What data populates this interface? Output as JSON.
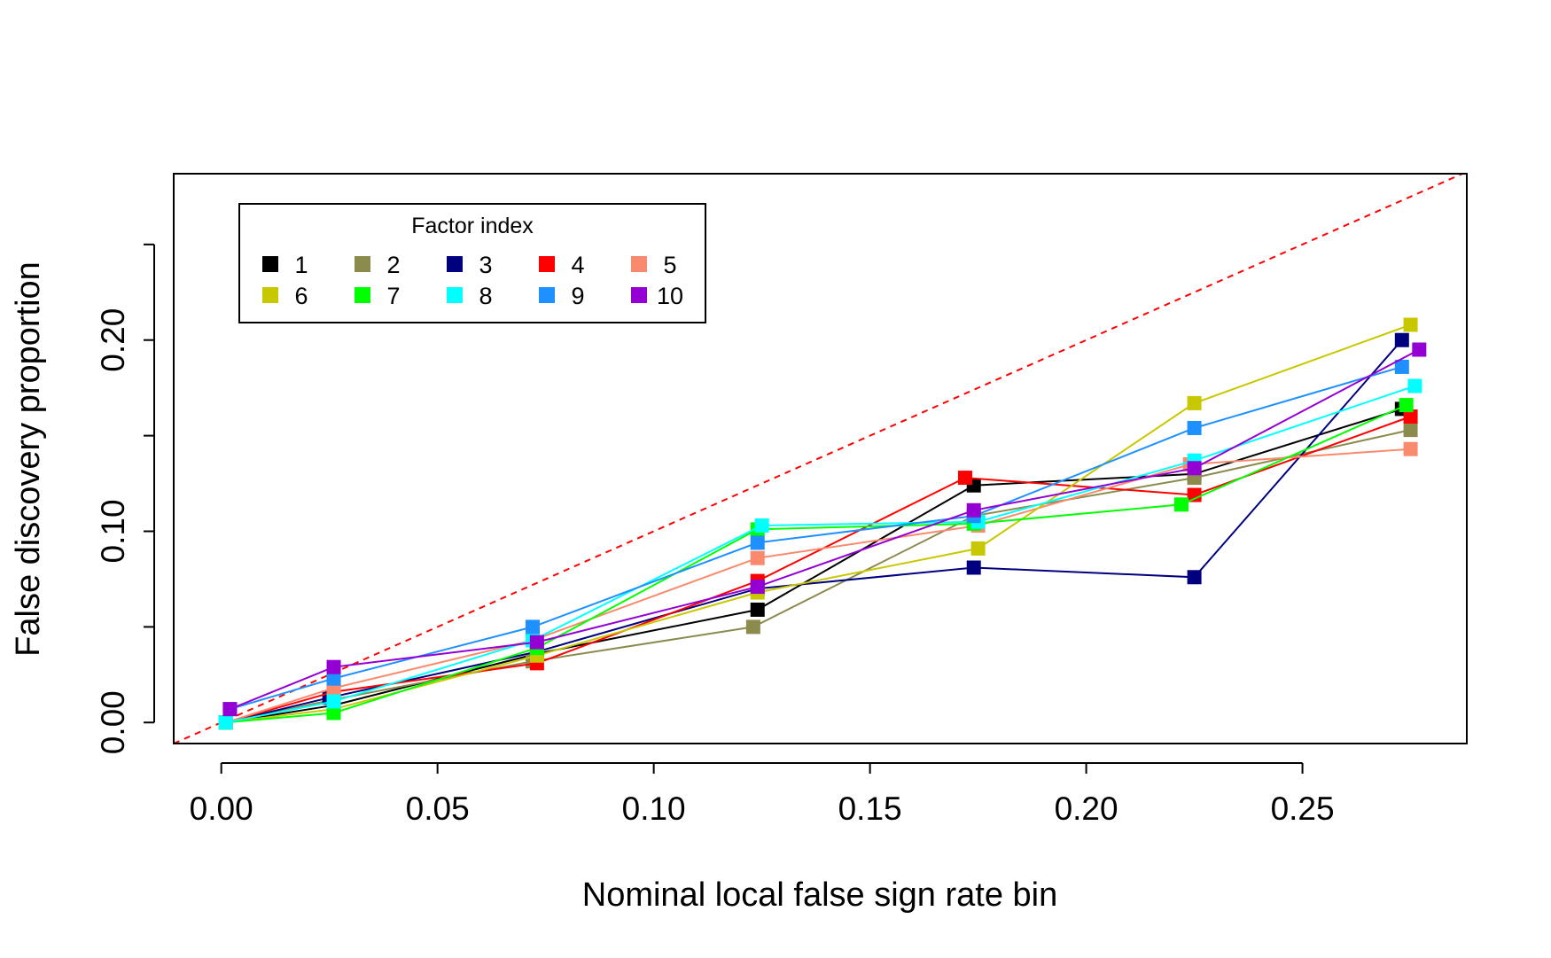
{
  "chart_data": {
    "type": "line",
    "xlabel": "Nominal local false sign rate bin",
    "ylabel": "False discovery proportion",
    "xlim": [
      -0.011,
      0.288
    ],
    "ylim": [
      -0.011,
      0.287
    ],
    "x_ticks": [
      0.0,
      0.05,
      0.1,
      0.15,
      0.2,
      0.25
    ],
    "x_tick_labels": [
      "0.00",
      "0.05",
      "0.10",
      "0.15",
      "0.20",
      "0.25"
    ],
    "y_ticks": [
      0.0,
      0.05,
      0.1,
      0.15,
      0.2,
      0.25
    ],
    "y_tick_labels": [
      "0.00",
      "",
      "0.10",
      "",
      "0.20",
      ""
    ],
    "reference_line": {
      "slope": 1,
      "intercept": 0,
      "style": "dashed",
      "color": "#ff0000"
    },
    "marker": "square",
    "legend": {
      "title": "Factor index",
      "position": "top-left",
      "columns": 5
    },
    "series": [
      {
        "name": "1",
        "color": "#000000",
        "x": [
          0.001,
          0.026,
          0.073,
          0.124,
          0.174,
          0.225,
          0.273
        ],
        "y": [
          0.0,
          0.009,
          0.036,
          0.059,
          0.124,
          0.13,
          0.164
        ]
      },
      {
        "name": "2",
        "color": "#8b8b4e",
        "x": [
          0.001,
          0.026,
          0.072,
          0.123,
          0.174,
          0.225,
          0.275
        ],
        "y": [
          0.0,
          0.012,
          0.032,
          0.05,
          0.108,
          0.128,
          0.153
        ]
      },
      {
        "name": "3",
        "color": "#00007f",
        "x": [
          0.001,
          0.025,
          0.073,
          0.124,
          0.174,
          0.225,
          0.273
        ],
        "y": [
          0.0,
          0.013,
          0.037,
          0.07,
          0.081,
          0.076,
          0.2
        ]
      },
      {
        "name": "4",
        "color": "#ff0000",
        "x": [
          0.001,
          0.026,
          0.073,
          0.124,
          0.172,
          0.225,
          0.275
        ],
        "y": [
          0.0,
          0.016,
          0.031,
          0.074,
          0.128,
          0.119,
          0.16
        ]
      },
      {
        "name": "5",
        "color": "#fa8a6e",
        "x": [
          0.001,
          0.026,
          0.072,
          0.124,
          0.175,
          0.224,
          0.275
        ],
        "y": [
          0.0,
          0.018,
          0.043,
          0.086,
          0.103,
          0.135,
          0.143
        ]
      },
      {
        "name": "6",
        "color": "#c8c800",
        "x": [
          0.001,
          0.026,
          0.073,
          0.124,
          0.175,
          0.225,
          0.275
        ],
        "y": [
          0.0,
          0.007,
          0.035,
          0.068,
          0.091,
          0.167,
          0.208
        ]
      },
      {
        "name": "7",
        "color": "#00ff00",
        "x": [
          0.001,
          0.026,
          0.073,
          0.124,
          0.174,
          0.222,
          0.274
        ],
        "y": [
          0.0,
          0.005,
          0.039,
          0.101,
          0.104,
          0.114,
          0.166
        ]
      },
      {
        "name": "8",
        "color": "#00ffff",
        "x": [
          0.001,
          0.026,
          0.072,
          0.125,
          0.175,
          0.225,
          0.276
        ],
        "y": [
          0.0,
          0.011,
          0.043,
          0.103,
          0.105,
          0.137,
          0.176
        ]
      },
      {
        "name": "9",
        "color": "#1e90ff",
        "x": [
          0.002,
          0.026,
          0.072,
          0.124,
          0.174,
          0.225,
          0.273
        ],
        "y": [
          0.007,
          0.023,
          0.05,
          0.094,
          0.108,
          0.154,
          0.186
        ]
      },
      {
        "name": "10",
        "color": "#9400d3",
        "x": [
          0.002,
          0.026,
          0.073,
          0.124,
          0.174,
          0.225,
          0.277
        ],
        "y": [
          0.007,
          0.029,
          0.042,
          0.071,
          0.111,
          0.133,
          0.195
        ]
      }
    ]
  }
}
